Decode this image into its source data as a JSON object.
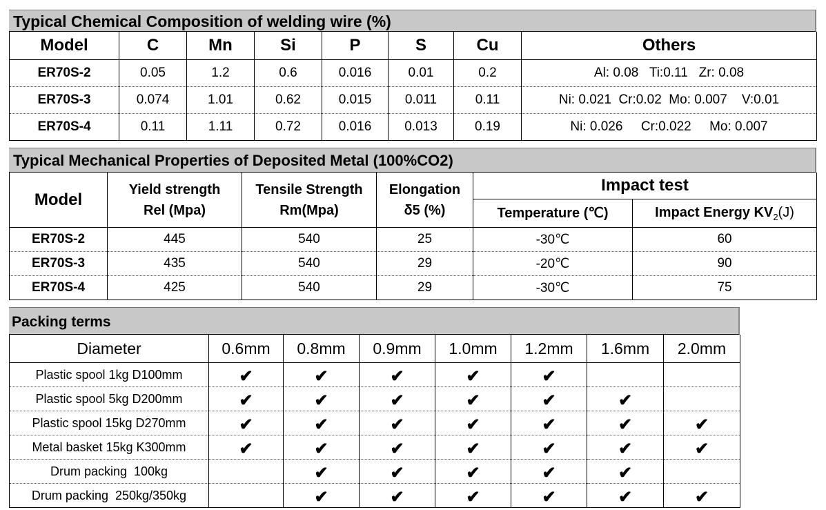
{
  "chemical": {
    "title": "Typical Chemical Composition of welding wire (%)",
    "headers": [
      "Model",
      "C",
      "Mn",
      "Si",
      "P",
      "S",
      "Cu",
      "Others"
    ],
    "rows": [
      [
        "ER70S-2",
        "0.05",
        "1.2",
        "0.6",
        "0.016",
        "0.01",
        "0.2",
        "Al: 0.08   Ti:0.11   Zr: 0.08"
      ],
      [
        "ER70S-3",
        "0.074",
        "1.01",
        "0.62",
        "0.015",
        "0.011",
        "0.11",
        "Ni: 0.021  Cr:0.02  Mo: 0.007    V:0.01"
      ],
      [
        "ER70S-4",
        "0.11",
        "1.11",
        "0.72",
        "0.016",
        "0.013",
        "0.19",
        "Ni: 0.026     Cr:0.022     Mo: 0.007"
      ]
    ]
  },
  "mechanical": {
    "title": "Typical Mechanical Properties of Deposited Metal (100%CO2)",
    "h_model": "Model",
    "h_yield_1": "Yield strength",
    "h_yield_2": "Rel (Mpa)",
    "h_tensile_1": "Tensile Strength",
    "h_tensile_2": "Rm(Mpa)",
    "h_elong_1": "Elongation",
    "h_elong_2": "δ5 (%)",
    "h_impact": "Impact test",
    "h_temp": "Temperature (℃)",
    "h_energy_pre": "Impact Energy KV",
    "h_energy_sub": "2",
    "h_energy_post": "(J)",
    "rows": [
      [
        "ER70S-2",
        "445",
        "540",
        "25",
        "-30℃",
        "60"
      ],
      [
        "ER70S-3",
        "435",
        "540",
        "29",
        "-20℃",
        "90"
      ],
      [
        "ER70S-4",
        "425",
        "540",
        "29",
        "-30℃",
        "75"
      ]
    ]
  },
  "packing": {
    "title": "Packing terms",
    "headers": [
      "Diameter",
      "0.6mm",
      "0.8mm",
      "0.9mm",
      "1.0mm",
      "1.2mm",
      "1.6mm",
      "2.0mm"
    ],
    "check_glyph": "✔",
    "rows": [
      {
        "label": "Plastic spool 1kg D100mm",
        "marks": [
          true,
          true,
          true,
          true,
          true,
          false,
          false
        ]
      },
      {
        "label": "Plastic spool 5kg D200mm",
        "marks": [
          true,
          true,
          true,
          true,
          true,
          true,
          false
        ]
      },
      {
        "label": "Plastic spool 15kg D270mm",
        "marks": [
          true,
          true,
          true,
          true,
          true,
          true,
          true
        ]
      },
      {
        "label": "Metal basket 15kg K300mm",
        "marks": [
          true,
          true,
          true,
          true,
          true,
          true,
          true
        ]
      },
      {
        "label": "Drum packing  100kg",
        "marks": [
          false,
          true,
          true,
          true,
          true,
          true,
          false
        ]
      },
      {
        "label": "Drum packing  250kg/350kg",
        "marks": [
          false,
          true,
          true,
          true,
          true,
          true,
          true
        ]
      }
    ]
  }
}
